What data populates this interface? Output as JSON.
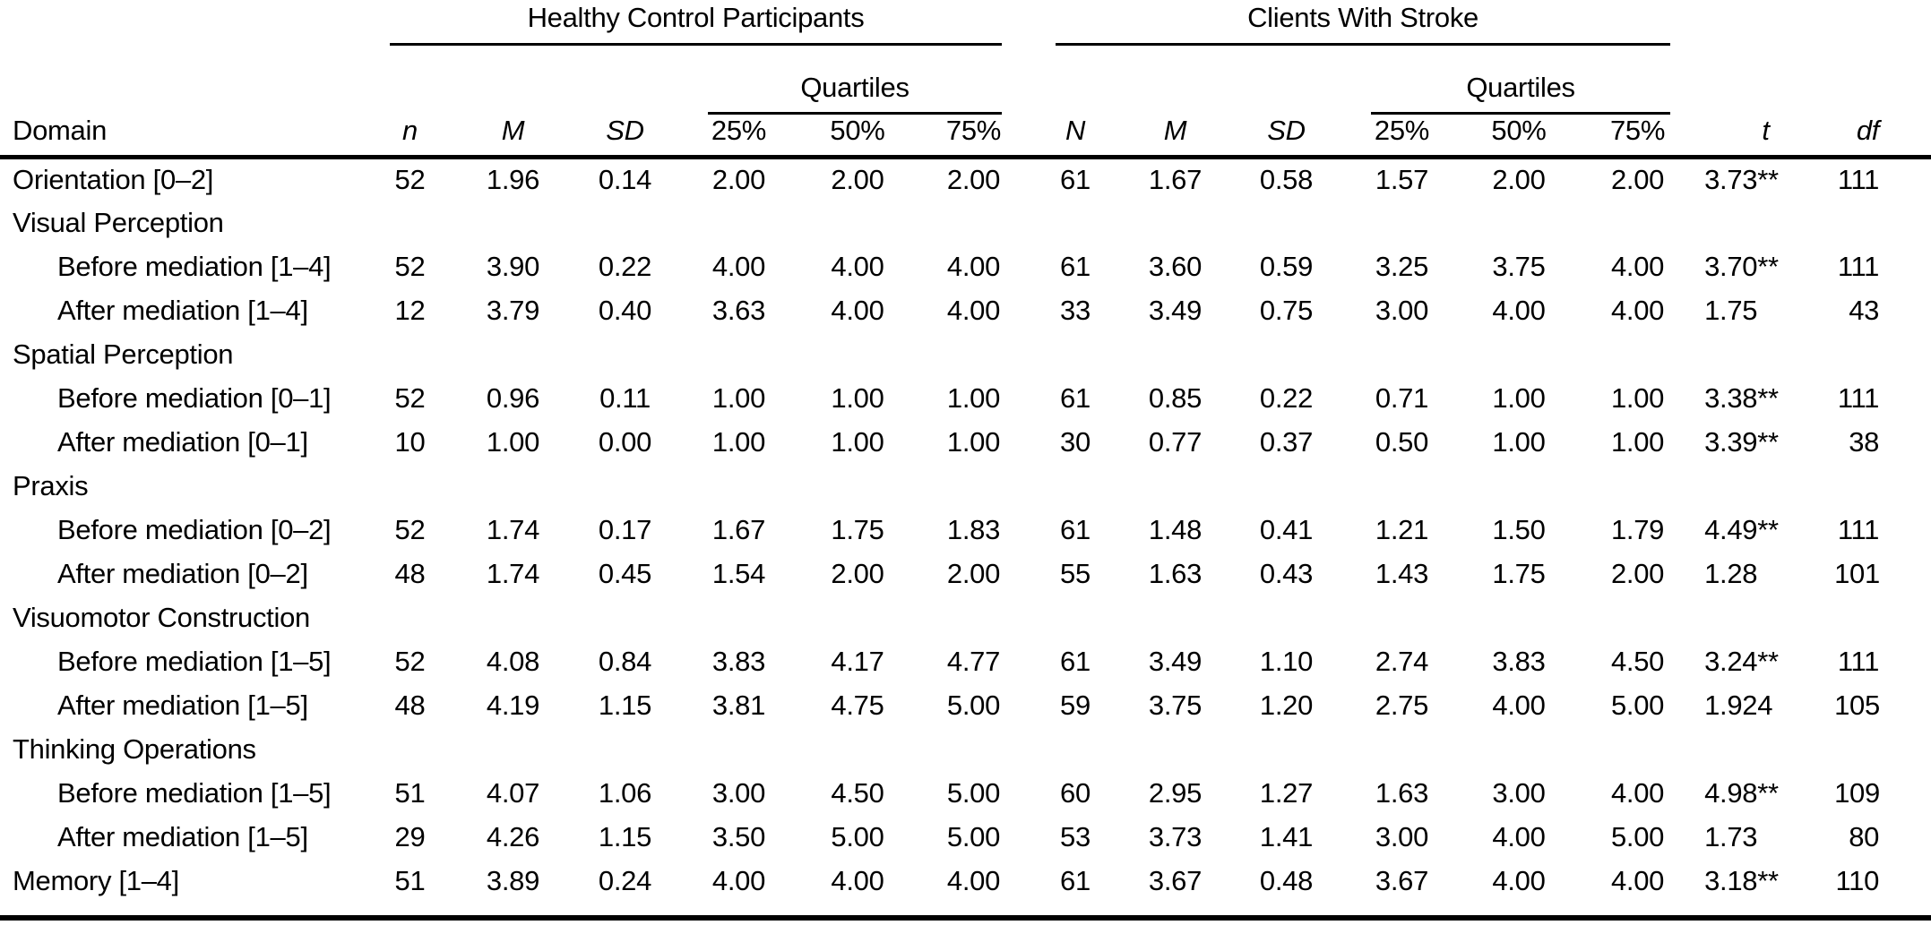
{
  "table": {
    "groups": {
      "healthy": "Healthy Control Participants",
      "stroke": "Clients With Stroke"
    },
    "quartiles_label": "Quartiles",
    "columns": [
      "Domain",
      "n",
      "M",
      "SD",
      "25%",
      "50%",
      "75%",
      "N",
      "M",
      "SD",
      "25%",
      "50%",
      "75%",
      "t",
      "df"
    ],
    "rows": [
      {
        "label": "Orientation [0–2]",
        "indent": 0,
        "cells": [
          "52",
          "1.96",
          "0.14",
          "2.00",
          "2.00",
          "2.00",
          "61",
          "1.67",
          "0.58",
          "1.57",
          "2.00",
          "2.00",
          "3.73**",
          "111"
        ]
      },
      {
        "label": "Visual Perception",
        "indent": 0,
        "cells": []
      },
      {
        "label": "Before mediation [1–4]",
        "indent": 1,
        "cells": [
          "52",
          "3.90",
          "0.22",
          "4.00",
          "4.00",
          "4.00",
          "61",
          "3.60",
          "0.59",
          "3.25",
          "3.75",
          "4.00",
          "3.70**",
          "111"
        ]
      },
      {
        "label": "After mediation [1–4]",
        "indent": 1,
        "cells": [
          "12",
          "3.79",
          "0.40",
          "3.63",
          "4.00",
          "4.00",
          "33",
          "3.49",
          "0.75",
          "3.00",
          "4.00",
          "4.00",
          "1.75",
          "43"
        ]
      },
      {
        "label": "Spatial Perception",
        "indent": 0,
        "cells": []
      },
      {
        "label": "Before mediation [0–1]",
        "indent": 1,
        "cells": [
          "52",
          "0.96",
          "0.11",
          "1.00",
          "1.00",
          "1.00",
          "61",
          "0.85",
          "0.22",
          "0.71",
          "1.00",
          "1.00",
          "3.38**",
          "111"
        ]
      },
      {
        "label": "After mediation [0–1]",
        "indent": 1,
        "cells": [
          "10",
          "1.00",
          "0.00",
          "1.00",
          "1.00",
          "1.00",
          "30",
          "0.77",
          "0.37",
          "0.50",
          "1.00",
          "1.00",
          "3.39**",
          "38"
        ]
      },
      {
        "label": "Praxis",
        "indent": 0,
        "cells": []
      },
      {
        "label": "Before mediation [0–2]",
        "indent": 1,
        "cells": [
          "52",
          "1.74",
          "0.17",
          "1.67",
          "1.75",
          "1.83",
          "61",
          "1.48",
          "0.41",
          "1.21",
          "1.50",
          "1.79",
          "4.49**",
          "111"
        ]
      },
      {
        "label": "After mediation [0–2]",
        "indent": 1,
        "cells": [
          "48",
          "1.74",
          "0.45",
          "1.54",
          "2.00",
          "2.00",
          "55",
          "1.63",
          "0.43",
          "1.43",
          "1.75",
          "2.00",
          "1.28",
          "101"
        ]
      },
      {
        "label": "Visuomotor Construction",
        "indent": 0,
        "cells": []
      },
      {
        "label": "Before mediation [1–5]",
        "indent": 1,
        "cells": [
          "52",
          "4.08",
          "0.84",
          "3.83",
          "4.17",
          "4.77",
          "61",
          "3.49",
          "1.10",
          "2.74",
          "3.83",
          "4.50",
          "3.24**",
          "111"
        ]
      },
      {
        "label": "After mediation [1–5]",
        "indent": 1,
        "cells": [
          "48",
          "4.19",
          "1.15",
          "3.81",
          "4.75",
          "5.00",
          "59",
          "3.75",
          "1.20",
          "2.75",
          "4.00",
          "5.00",
          "1.924",
          "105"
        ]
      },
      {
        "label": "Thinking Operations",
        "indent": 0,
        "cells": []
      },
      {
        "label": "Before mediation [1–5]",
        "indent": 1,
        "cells": [
          "51",
          "4.07",
          "1.06",
          "3.00",
          "4.50",
          "5.00",
          "60",
          "2.95",
          "1.27",
          "1.63",
          "3.00",
          "4.00",
          "4.98**",
          "109"
        ]
      },
      {
        "label": "After mediation [1–5]",
        "indent": 1,
        "cells": [
          "29",
          "4.26",
          "1.15",
          "3.50",
          "5.00",
          "5.00",
          "53",
          "3.73",
          "1.41",
          "3.00",
          "4.00",
          "5.00",
          "1.73",
          "80"
        ]
      },
      {
        "label": "Memory [1–4]",
        "indent": 0,
        "cells": [
          "51",
          "3.89",
          "0.24",
          "4.00",
          "4.00",
          "4.00",
          "61",
          "3.67",
          "0.48",
          "3.67",
          "4.00",
          "4.00",
          "3.18**",
          "110"
        ]
      }
    ]
  }
}
